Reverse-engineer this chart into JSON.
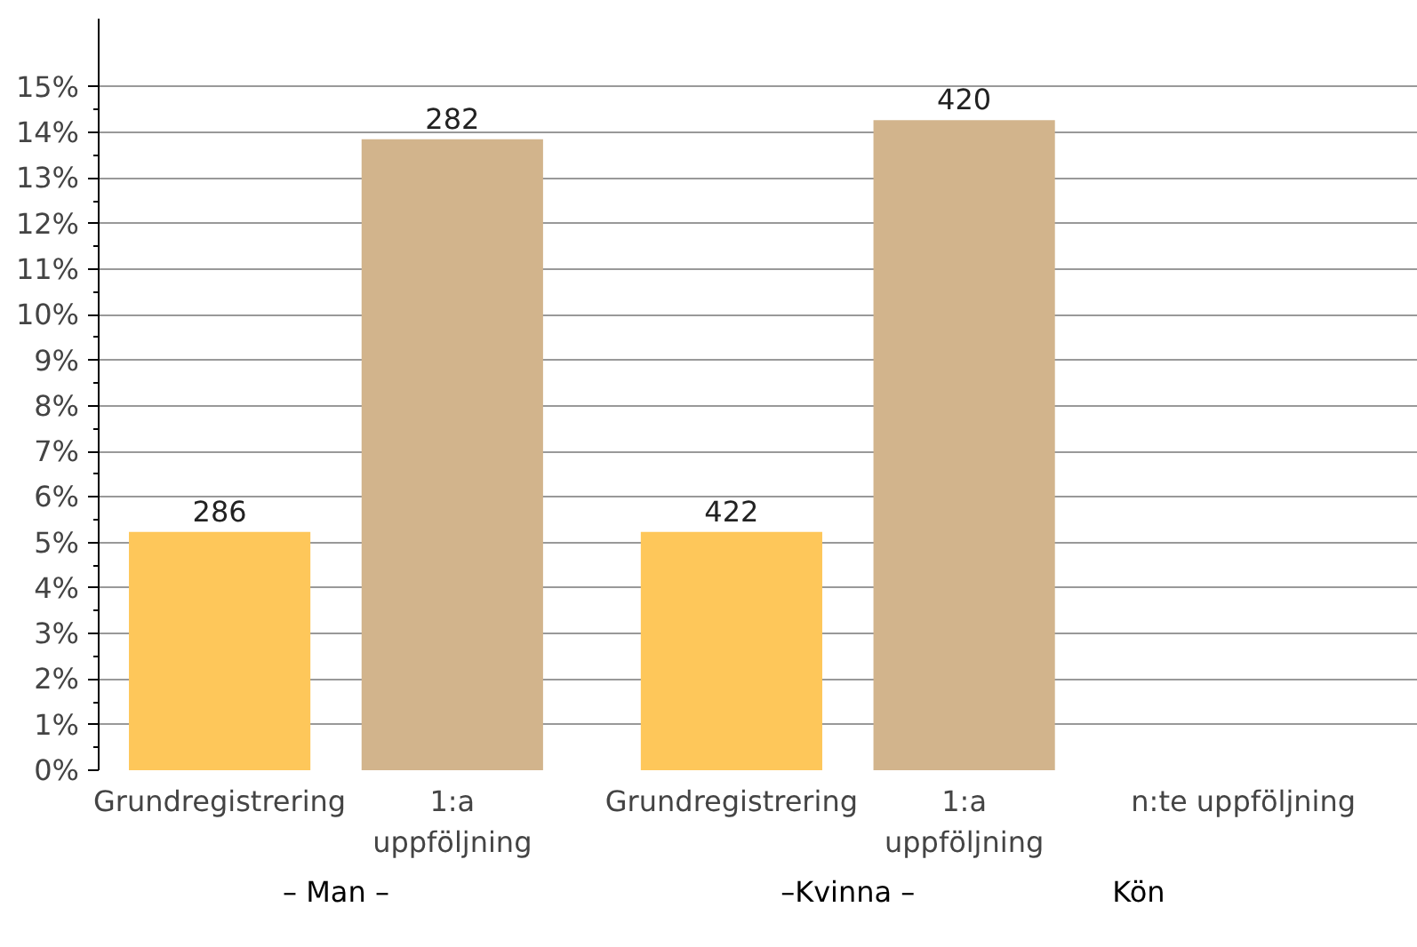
{
  "chart_data": {
    "type": "bar",
    "categories": [
      "Grundregistrering",
      "1:a uppföljning",
      "Grundregistrering",
      "1:a uppföljning",
      "n:te uppföljning"
    ],
    "values": [
      5.23,
      13.85,
      5.23,
      14.27,
      null
    ],
    "colors": [
      "#fec75a",
      "#d2b48c",
      "#fec75a",
      "#d2b48c",
      "#d2b48c"
    ],
    "xlabel": "Kön",
    "annotations": [
      "286",
      "282",
      "422",
      "420",
      "– Man –",
      "–Kvinna –"
    ],
    "ylim": [
      0,
      16.5
    ],
    "yticks": [
      {
        "value": 0,
        "label": "0%"
      },
      {
        "value": 1,
        "label": "1%"
      },
      {
        "value": 2,
        "label": "2%"
      },
      {
        "value": 3,
        "label": "3%"
      },
      {
        "value": 4,
        "label": "4%"
      },
      {
        "value": 5,
        "label": "5%"
      },
      {
        "value": 6,
        "label": "6%"
      },
      {
        "value": 7,
        "label": "7%"
      },
      {
        "value": 8,
        "label": "8%"
      },
      {
        "value": 9,
        "label": "9%"
      },
      {
        "value": 10,
        "label": "10%"
      },
      {
        "value": 11,
        "label": "11%"
      },
      {
        "value": 12,
        "label": "12%"
      },
      {
        "value": 13,
        "label": "13%"
      },
      {
        "value": 14,
        "label": "14%"
      },
      {
        "value": 15,
        "label": "15%"
      }
    ],
    "grid": "y"
  }
}
